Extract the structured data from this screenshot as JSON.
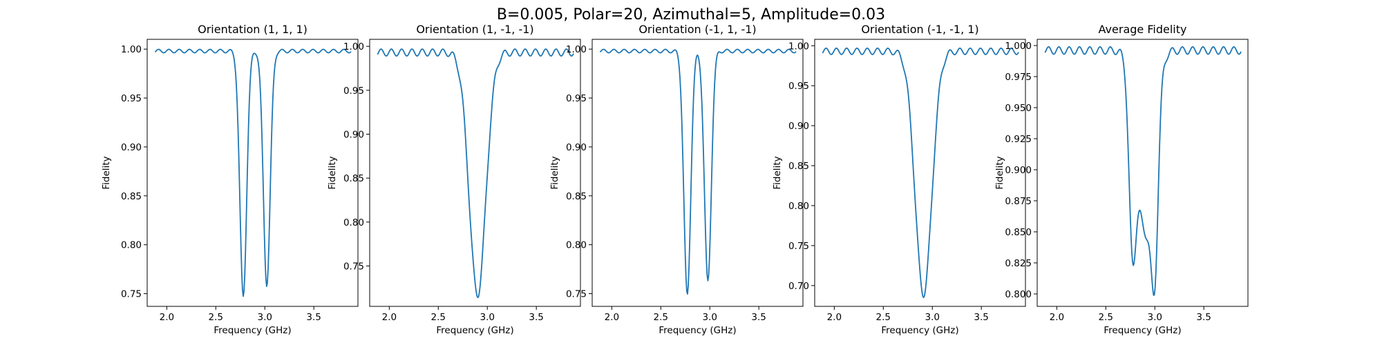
{
  "suptitle": "B=0.005, Polar=20, Azimuthal=5, Amplitude=0.03",
  "colors": {
    "line": "#1f77b4"
  },
  "chart_data": [
    {
      "type": "line",
      "title": "Orientation (1, 1, 1)",
      "xlabel": "Frequency (GHz)",
      "ylabel": "Fidelity",
      "xlim": [
        1.8,
        3.95
      ],
      "ylim": [
        0.737,
        1.01
      ],
      "xticks": [
        "2.0",
        "2.5",
        "3.0",
        "3.5"
      ],
      "yticks": [
        "0.75",
        "0.80",
        "0.85",
        "0.90",
        "0.95",
        "1.00"
      ],
      "dips": [
        {
          "center": 2.78,
          "depth": 0.251,
          "width": 0.035
        },
        {
          "center": 3.02,
          "depth": 0.239,
          "width": 0.035
        }
      ],
      "ripple": 0.0018,
      "baseline": 0.998
    },
    {
      "type": "line",
      "title": "Orientation (1, -1, -1)",
      "xlabel": "Frequency (GHz)",
      "ylabel": "Fidelity",
      "xlim": [
        1.8,
        3.95
      ],
      "ylim": [
        0.704,
        1.008
      ],
      "xticks": [
        "2.0",
        "2.5",
        "3.0",
        "3.5"
      ],
      "yticks": [
        "0.75",
        "0.80",
        "0.85",
        "0.90",
        "0.95",
        "1.00"
      ],
      "dips": [
        {
          "center": 2.9,
          "depth": 0.276,
          "width": 0.085
        }
      ],
      "ripple": 0.004,
      "baseline": 0.993
    },
    {
      "type": "line",
      "title": "Orientation (-1, 1, -1)",
      "xlabel": "Frequency (GHz)",
      "ylabel": "Fidelity",
      "xlim": [
        1.8,
        3.95
      ],
      "ylim": [
        0.737,
        1.01
      ],
      "xticks": [
        "2.0",
        "2.5",
        "3.0",
        "3.5"
      ],
      "yticks": [
        "0.75",
        "0.80",
        "0.85",
        "0.90",
        "0.95",
        "1.00"
      ],
      "dips": [
        {
          "center": 2.77,
          "depth": 0.25,
          "width": 0.035
        },
        {
          "center": 2.98,
          "depth": 0.236,
          "width": 0.035
        }
      ],
      "ripple": 0.0018,
      "baseline": 0.998
    },
    {
      "type": "line",
      "title": "Orientation (-1, -1, 1)",
      "xlabel": "Frequency (GHz)",
      "ylabel": "Fidelity",
      "xlim": [
        1.8,
        3.95
      ],
      "ylim": [
        0.674,
        1.008
      ],
      "xticks": [
        "2.0",
        "2.5",
        "3.0",
        "3.5"
      ],
      "yticks": [
        "0.70",
        "0.75",
        "0.80",
        "0.85",
        "0.90",
        "0.95",
        "1.00"
      ],
      "dips": [
        {
          "center": 2.91,
          "depth": 0.304,
          "width": 0.085
        }
      ],
      "ripple": 0.004,
      "baseline": 0.993
    },
    {
      "type": "line",
      "title": "Average Fidelity",
      "xlabel": "Frequency (GHz)",
      "ylabel": "Fidelity",
      "xlim": [
        1.8,
        3.95
      ],
      "ylim": [
        0.79,
        1.005
      ],
      "xticks": [
        "2.0",
        "2.5",
        "3.0",
        "3.5"
      ],
      "yticks": [
        "0.800",
        "0.825",
        "0.850",
        "0.875",
        "0.900",
        "0.925",
        "0.950",
        "0.975",
        "1.000"
      ],
      "dips": [
        {
          "center": 2.77,
          "depth": 0.125,
          "width": 0.035
        },
        {
          "center": 3.0,
          "depth": 0.12,
          "width": 0.035
        },
        {
          "center": 2.9,
          "depth": 0.145,
          "width": 0.085
        }
      ],
      "ripple": 0.003,
      "baseline": 0.996
    }
  ]
}
